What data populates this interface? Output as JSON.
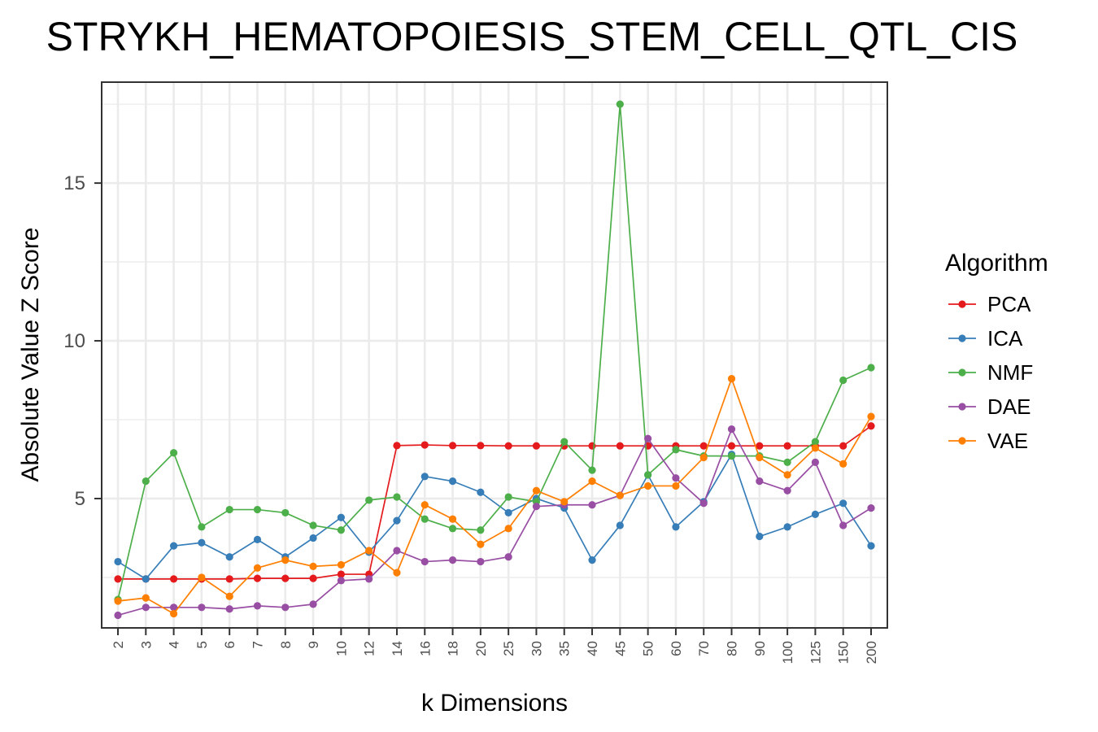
{
  "chart_data": {
    "type": "line",
    "title": "STRYKH_HEMATOPOIESIS_STEM_CELL_QTL_CIS",
    "xlabel": "k Dimensions",
    "ylabel": "Absolute Value Z Score",
    "categories": [
      "2",
      "3",
      "4",
      "5",
      "6",
      "7",
      "8",
      "9",
      "10",
      "12",
      "14",
      "16",
      "18",
      "20",
      "25",
      "30",
      "35",
      "40",
      "45",
      "50",
      "60",
      "70",
      "80",
      "90",
      "100",
      "125",
      "150",
      "200"
    ],
    "y_ticks": [
      5,
      10,
      15
    ],
    "ylim": [
      0.9,
      18.2
    ],
    "grid": true,
    "legend_title": "Algorithm",
    "legend_position": "right",
    "series": [
      {
        "name": "PCA",
        "color": "#e41a1c",
        "values": [
          2.45,
          2.45,
          2.45,
          2.45,
          2.45,
          2.47,
          2.47,
          2.47,
          2.6,
          2.6,
          6.68,
          6.7,
          6.68,
          6.68,
          6.67,
          6.67,
          6.67,
          6.67,
          6.67,
          6.67,
          6.67,
          6.67,
          6.67,
          6.67,
          6.67,
          6.67,
          6.67,
          7.3
        ]
      },
      {
        "name": "ICA",
        "color": "#377eb8",
        "values": [
          3.0,
          2.45,
          3.5,
          3.6,
          3.15,
          3.7,
          3.15,
          3.75,
          4.4,
          3.3,
          4.3,
          5.7,
          5.55,
          5.2,
          4.55,
          5.0,
          4.7,
          3.05,
          4.15,
          5.75,
          4.1,
          4.9,
          6.4,
          3.8,
          4.1,
          4.5,
          4.85,
          3.5
        ]
      },
      {
        "name": "NMF",
        "color": "#4daf4a",
        "values": [
          1.8,
          5.55,
          6.45,
          4.1,
          4.65,
          4.65,
          4.55,
          4.15,
          4.0,
          4.95,
          5.05,
          4.35,
          4.05,
          4.0,
          5.05,
          4.9,
          6.8,
          5.9,
          17.5,
          5.75,
          6.55,
          6.35,
          6.35,
          6.35,
          6.15,
          6.8,
          8.75,
          9.15
        ]
      },
      {
        "name": "DAE",
        "color": "#984ea3",
        "values": [
          1.3,
          1.55,
          1.55,
          1.55,
          1.5,
          1.6,
          1.55,
          1.65,
          2.4,
          2.45,
          3.35,
          3.0,
          3.05,
          3.0,
          3.15,
          4.75,
          4.8,
          4.8,
          5.1,
          6.9,
          5.65,
          4.85,
          7.2,
          5.55,
          5.25,
          6.15,
          4.15,
          4.7
        ]
      },
      {
        "name": "VAE",
        "color": "#ff7f00",
        "values": [
          1.75,
          1.85,
          1.35,
          2.5,
          1.9,
          2.8,
          3.05,
          2.85,
          2.9,
          3.35,
          2.65,
          4.8,
          4.35,
          3.55,
          4.05,
          5.25,
          4.9,
          5.55,
          5.1,
          5.4,
          5.4,
          6.3,
          8.8,
          6.3,
          5.75,
          6.6,
          6.1,
          7.6
        ]
      }
    ]
  }
}
